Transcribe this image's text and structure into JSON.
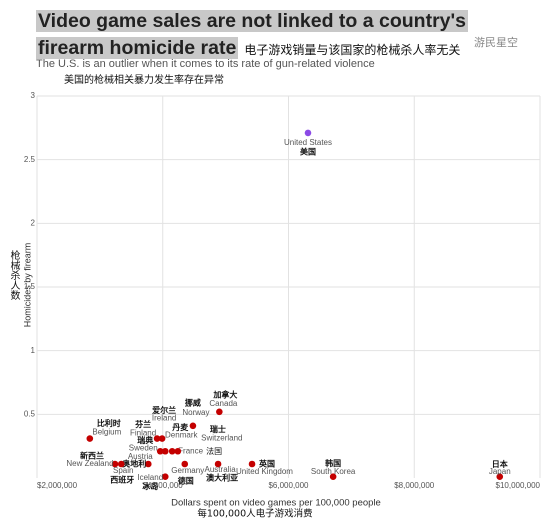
{
  "chart_data": {
    "type": "scatter",
    "title": "Video game sales are not linked to a country's firearm homicide rate",
    "title_cn": "电子游戏销量与该国家的枪械杀人率无关",
    "subtitle": "The U.S. is an outlier when it comes to its rate of gun-related violence",
    "subtitle_cn": "美国的枪械相关暴力发生率存在异常",
    "xlabel": "Dollars spent on video games per 100,000 people",
    "xlabel_cn": "每100,000人电子游戏消费",
    "ylabel": "Homicides by firearm",
    "ylabel_cn": "枪械杀人数",
    "watermark": "游民星空",
    "xlim": [
      2000000,
      10000000
    ],
    "xticks": [
      {
        "value": 2000000,
        "label": "$2,000,000"
      },
      {
        "value": 4000000,
        "label": "$4,000,000"
      },
      {
        "value": 6000000,
        "label": "$6,000,000"
      },
      {
        "value": 8000000,
        "label": "$8,000,000"
      },
      {
        "value": 10000000,
        "label": "$10,000,000"
      }
    ],
    "ylim": [
      0,
      3
    ],
    "yticks": [
      0.5,
      1,
      1.5,
      2,
      2.5,
      3
    ],
    "grid": true,
    "points": [
      {
        "name": "United States",
        "name_cn": "美国",
        "x": 6310000,
        "y": 2.71,
        "color": "#8b4ae6"
      },
      {
        "name": "Japan",
        "name_cn": "日本",
        "x": 9360000,
        "y": 0.01,
        "color": "#c40000"
      },
      {
        "name": "South Korea",
        "name_cn": "韩国",
        "x": 6710000,
        "y": 0.01,
        "color": "#c40000"
      },
      {
        "name": "United Kingdom",
        "name_cn": "英国",
        "x": 5420000,
        "y": 0.11,
        "color": "#c40000"
      },
      {
        "name": "Australia",
        "name_cn": "澳大利亚",
        "x": 4880000,
        "y": 0.11,
        "color": "#c40000"
      },
      {
        "name": "Germany",
        "name_cn": "德国",
        "x": 4350000,
        "y": 0.11,
        "color": "#c40000"
      },
      {
        "name": "France",
        "name_cn": "法国",
        "x": 4150000,
        "y": 0.21,
        "color": "#c40000"
      },
      {
        "name": "Canada",
        "name_cn": "加拿大",
        "x": 4900000,
        "y": 0.52,
        "color": "#c40000"
      },
      {
        "name": "Norway",
        "name_cn": "挪威",
        "x": 4480000,
        "y": 0.41,
        "color": "#c40000"
      },
      {
        "name": "Switzerland",
        "name_cn": "瑞士",
        "x": 4240000,
        "y": 0.21,
        "color": "#c40000"
      },
      {
        "name": "Denmark",
        "name_cn": "丹麦",
        "x": 4040000,
        "y": 0.21,
        "color": "#c40000"
      },
      {
        "name": "Ireland",
        "name_cn": "爱尔兰",
        "x": 3990000,
        "y": 0.31,
        "color": "#c40000"
      },
      {
        "name": "Finland",
        "name_cn": "芬兰",
        "x": 3910000,
        "y": 0.31,
        "color": "#c40000"
      },
      {
        "name": "Sweden",
        "name_cn": "瑞典",
        "x": 3960000,
        "y": 0.21,
        "color": "#c40000"
      },
      {
        "name": "Austria",
        "name_cn": "奥地利",
        "x": 3770000,
        "y": 0.11,
        "color": "#c40000"
      },
      {
        "name": "Iceland",
        "name_cn": "冰岛",
        "x": 4040000,
        "y": 0.01,
        "color": "#c40000"
      },
      {
        "name": "Belgium",
        "name_cn": "比利时",
        "x": 2840000,
        "y": 0.31,
        "color": "#c40000"
      },
      {
        "name": "New Zealand",
        "name_cn": "新西兰",
        "x": 3240000,
        "y": 0.11,
        "color": "#c40000"
      },
      {
        "name": "Spain",
        "name_cn": "西班牙",
        "x": 3340000,
        "y": 0.11,
        "color": "#c40000"
      }
    ]
  }
}
